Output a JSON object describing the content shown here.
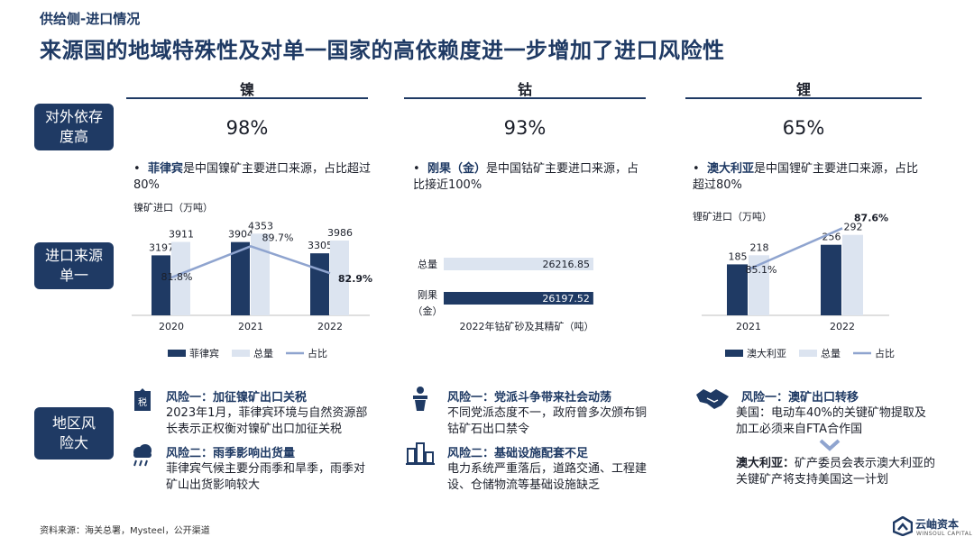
{
  "header": {
    "section": "供给侧-进口情况",
    "title": "来源国的地域特殊性及对单一国家的高依赖度进一步增加了进口风险性"
  },
  "row_labels": [
    "对外依存度高",
    "进口来源单一",
    "地区风险大"
  ],
  "columns": [
    {
      "name": "镍",
      "dependency": "98%",
      "bullet_bold": "菲律宾",
      "bullet_rest": "是中国镍矿主要进口来源，占比超过80%",
      "risks": [
        {
          "title": "风险一：加征镍矿出口关税",
          "text": "2023年1月，菲律宾环境与自然资源部长表示正权衡对镍矿出口加征关税",
          "icon": "tax-icon"
        },
        {
          "title": "风险二：雨季影响出货量",
          "text": "菲律宾气候主要分雨季和旱季，雨季对矿山出货影响较大",
          "icon": "rain-cloud-icon"
        }
      ]
    },
    {
      "name": "钴",
      "dependency": "93%",
      "bullet_bold": "刚果（金）",
      "bullet_rest": "是中国钴矿主要进口来源，占比接近100%",
      "risks": [
        {
          "title": "风险一：党派斗争带来社会动荡",
          "text": "不同党派态度不一，政府曾多次颁布铜钴矿石出口禁令",
          "icon": "podium-speaker-icon"
        },
        {
          "title": "风险二：基础设施配套不足",
          "text": "电力系统严重落后，道路交通、工程建设、仓储物流等基础设施缺乏",
          "icon": "infrastructure-icon"
        }
      ]
    },
    {
      "name": "锂",
      "dependency": "65%",
      "bullet_bold": "澳大利亚",
      "bullet_rest": "是中国锂矿主要进口来源，占比超过80%",
      "risks": [
        {
          "title": "风险一：澳矿出口转移",
          "text": "美国：电动车40%的关键矿物提取及加工必须来自FTA合作国",
          "icon": "handshake-icon"
        },
        {
          "title": "",
          "text_bold": "澳大利亚：",
          "text": "矿产委员会表示澳大利亚的关键矿产将支持美国这一计划",
          "icon": "chevron-down-icon"
        }
      ]
    }
  ],
  "chart_data": [
    {
      "type": "bar",
      "title": "",
      "ylabel": "镍矿进口（万吨）",
      "categories": [
        "2020",
        "2021",
        "2022"
      ],
      "series": [
        {
          "name": "菲律宾",
          "values": [
            3197,
            3904,
            3305
          ],
          "color": "#1f3a64"
        },
        {
          "name": "总量",
          "values": [
            3911,
            4353,
            3986
          ],
          "color": "#dce4f0"
        }
      ],
      "line": {
        "name": "占比",
        "values": [
          "81.8%",
          "89.7%",
          "82.9%"
        ],
        "numeric": [
          81.8,
          89.7,
          82.9
        ],
        "color": "#8fa4cf"
      },
      "ylim": [
        0,
        4800
      ],
      "legend_position": "bottom"
    },
    {
      "type": "bar",
      "orientation": "horizontal",
      "xlabel": "2022年钴矿砂及其精矿（吨）",
      "categories": [
        "总量",
        "刚果（金）"
      ],
      "category_lines": [
        [
          "总量"
        ],
        [
          "刚果",
          "（金）"
        ]
      ],
      "values": [
        26216.85,
        26197.52
      ],
      "value_labels": [
        "26216.85",
        "26197.52"
      ],
      "colors": [
        "#dce4f0",
        "#1f3a64"
      ]
    },
    {
      "type": "bar",
      "ylabel": "锂矿进口（万吨）",
      "categories": [
        "2021",
        "2022"
      ],
      "series": [
        {
          "name": "澳大利亚",
          "values": [
            185,
            256
          ],
          "color": "#1f3a64"
        },
        {
          "name": "总量",
          "values": [
            218,
            292
          ],
          "color": "#dce4f0"
        }
      ],
      "line": {
        "name": "占比",
        "values": [
          "85.1%",
          "87.6%"
        ],
        "numeric": [
          85.1,
          87.6
        ],
        "color": "#8fa4cf"
      },
      "ylim": [
        0,
        340
      ],
      "legend_position": "bottom"
    }
  ],
  "footer": {
    "source": "资料来源：海关总署，Mysteel，公开渠道",
    "logo_text": "云岫资本",
    "logo_sub": "WINSOUL CAPITAL"
  }
}
